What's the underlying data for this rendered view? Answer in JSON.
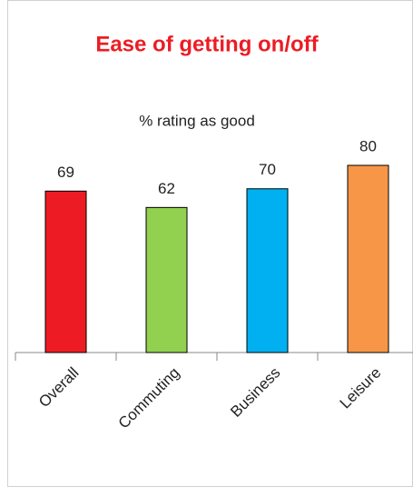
{
  "chart_data": {
    "type": "bar",
    "title": "Ease of getting on/off",
    "subtitle": "% rating as good",
    "categories": [
      "Overall",
      "Commuting",
      "Business",
      "Leisure"
    ],
    "values": [
      69,
      62,
      70,
      80
    ],
    "colors": [
      "#ed1c24",
      "#92d050",
      "#00b0f0",
      "#f79646"
    ],
    "ylim": [
      0,
      100
    ]
  }
}
